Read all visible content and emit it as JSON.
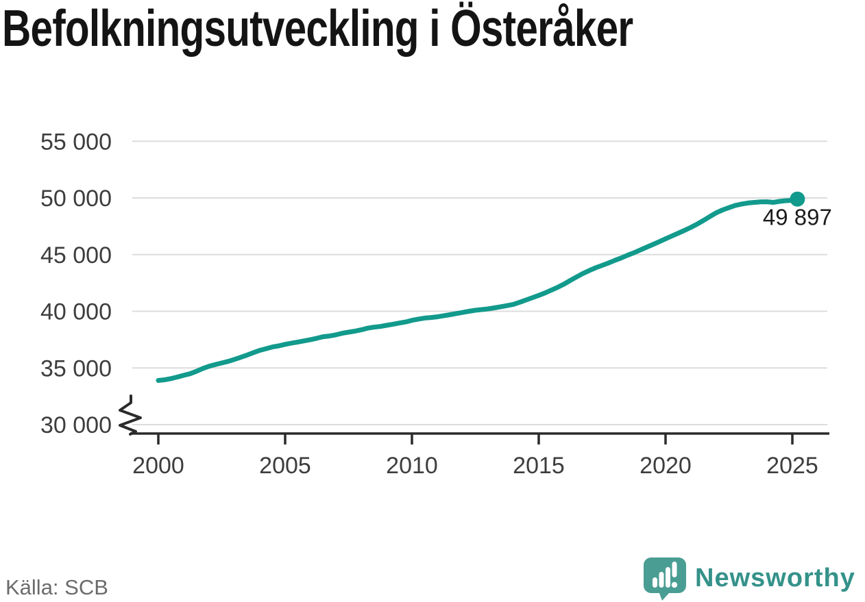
{
  "title": "Befolkningsutveckling i Österåker",
  "source": "Källa: SCB",
  "branding": {
    "logo_text": "Newsworthy"
  },
  "colors": {
    "line": "#129a8c",
    "grid": "#dcdcdc",
    "axis": "#2b2b2b",
    "tick_label": "#3d3d3d",
    "title": "#141414",
    "source": "#6b6b6b",
    "logo": "#4a9d92",
    "logo_text": "#35928a"
  },
  "chart_data": {
    "type": "line",
    "title": "Befolkningsutveckling i Österåker",
    "series_name": "Befolkning i Österåker",
    "xlabel": "",
    "ylabel": "",
    "xlim": [
      1999,
      2026.5
    ],
    "ylim": [
      30000,
      55000
    ],
    "x_ticks": [
      2000,
      2005,
      2010,
      2015,
      2020,
      2025
    ],
    "y_ticks": [
      30000,
      35000,
      40000,
      45000,
      50000,
      55000
    ],
    "y_tick_labels": [
      "30 000",
      "35 000",
      "40 000",
      "45 000",
      "50 000",
      "55 000"
    ],
    "grid": "horizontal",
    "axis_break_at_y": 30000,
    "legend": "none",
    "end_label": "49 897",
    "end_value": 49897,
    "points": [
      [
        2000.0,
        33900
      ],
      [
        2000.25,
        33960
      ],
      [
        2000.5,
        34060
      ],
      [
        2000.75,
        34200
      ],
      [
        2001.0,
        34350
      ],
      [
        2001.25,
        34490
      ],
      [
        2001.5,
        34700
      ],
      [
        2001.75,
        34950
      ],
      [
        2002.0,
        35150
      ],
      [
        2002.25,
        35300
      ],
      [
        2002.5,
        35440
      ],
      [
        2002.75,
        35580
      ],
      [
        2003.0,
        35750
      ],
      [
        2003.25,
        35940
      ],
      [
        2003.5,
        36140
      ],
      [
        2003.75,
        36350
      ],
      [
        2004.0,
        36550
      ],
      [
        2004.25,
        36700
      ],
      [
        2004.5,
        36850
      ],
      [
        2004.75,
        36950
      ],
      [
        2005.0,
        37080
      ],
      [
        2005.25,
        37190
      ],
      [
        2005.5,
        37290
      ],
      [
        2005.75,
        37390
      ],
      [
        2006.0,
        37500
      ],
      [
        2006.25,
        37620
      ],
      [
        2006.5,
        37760
      ],
      [
        2006.75,
        37820
      ],
      [
        2007.0,
        37920
      ],
      [
        2007.25,
        38060
      ],
      [
        2007.5,
        38160
      ],
      [
        2007.75,
        38250
      ],
      [
        2008.0,
        38360
      ],
      [
        2008.25,
        38510
      ],
      [
        2008.5,
        38600
      ],
      [
        2008.75,
        38660
      ],
      [
        2009.0,
        38760
      ],
      [
        2009.25,
        38860
      ],
      [
        2009.5,
        38960
      ],
      [
        2009.75,
        39060
      ],
      [
        2010.0,
        39200
      ],
      [
        2010.25,
        39310
      ],
      [
        2010.5,
        39400
      ],
      [
        2010.75,
        39450
      ],
      [
        2011.0,
        39510
      ],
      [
        2011.25,
        39600
      ],
      [
        2011.5,
        39700
      ],
      [
        2011.75,
        39800
      ],
      [
        2012.0,
        39900
      ],
      [
        2012.25,
        40000
      ],
      [
        2012.5,
        40090
      ],
      [
        2012.75,
        40150
      ],
      [
        2013.0,
        40210
      ],
      [
        2013.25,
        40300
      ],
      [
        2013.5,
        40400
      ],
      [
        2013.75,
        40500
      ],
      [
        2014.0,
        40610
      ],
      [
        2014.25,
        40800
      ],
      [
        2014.5,
        41000
      ],
      [
        2014.75,
        41200
      ],
      [
        2015.0,
        41400
      ],
      [
        2015.25,
        41620
      ],
      [
        2015.5,
        41870
      ],
      [
        2015.75,
        42120
      ],
      [
        2016.0,
        42400
      ],
      [
        2016.25,
        42730
      ],
      [
        2016.5,
        43040
      ],
      [
        2016.75,
        43340
      ],
      [
        2017.0,
        43600
      ],
      [
        2017.25,
        43840
      ],
      [
        2017.5,
        44050
      ],
      [
        2017.75,
        44260
      ],
      [
        2018.0,
        44490
      ],
      [
        2018.25,
        44700
      ],
      [
        2018.5,
        44940
      ],
      [
        2018.75,
        45160
      ],
      [
        2019.0,
        45400
      ],
      [
        2019.25,
        45650
      ],
      [
        2019.5,
        45890
      ],
      [
        2019.75,
        46140
      ],
      [
        2020.0,
        46390
      ],
      [
        2020.25,
        46640
      ],
      [
        2020.5,
        46890
      ],
      [
        2020.75,
        47140
      ],
      [
        2021.0,
        47400
      ],
      [
        2021.25,
        47700
      ],
      [
        2021.5,
        48020
      ],
      [
        2021.75,
        48360
      ],
      [
        2022.0,
        48690
      ],
      [
        2022.25,
        48940
      ],
      [
        2022.5,
        49140
      ],
      [
        2022.75,
        49340
      ],
      [
        2023.0,
        49460
      ],
      [
        2023.25,
        49550
      ],
      [
        2023.5,
        49610
      ],
      [
        2023.75,
        49650
      ],
      [
        2024.0,
        49660
      ],
      [
        2024.25,
        49610
      ],
      [
        2024.5,
        49700
      ],
      [
        2024.75,
        49760
      ],
      [
        2025.0,
        49790
      ],
      [
        2025.2,
        49897
      ]
    ]
  }
}
